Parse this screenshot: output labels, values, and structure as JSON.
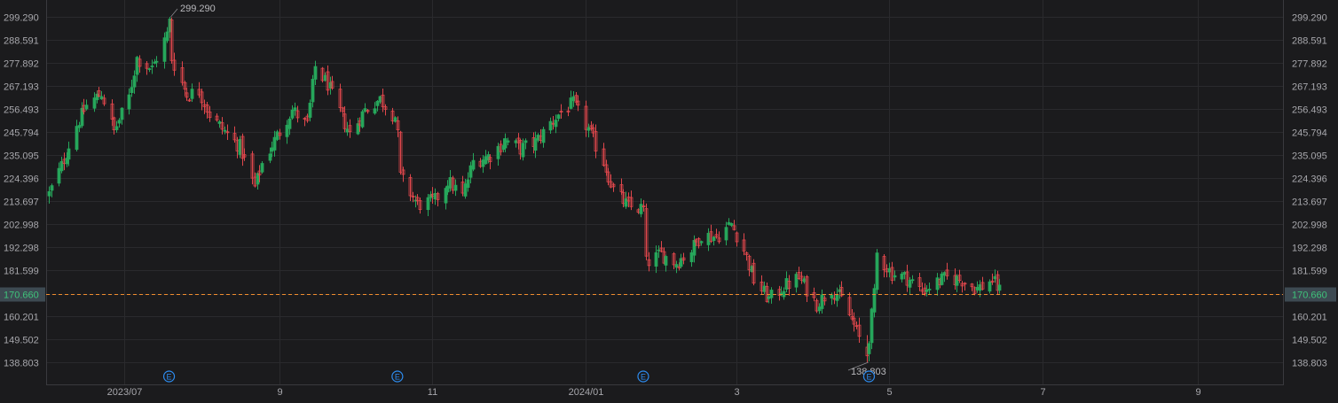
{
  "chart_data": {
    "type": "candlestick",
    "y_ticks": [
      299.29,
      288.591,
      277.892,
      267.193,
      256.493,
      245.794,
      235.095,
      224.396,
      213.697,
      202.998,
      192.298,
      181.599,
      170.66,
      160.201,
      149.502,
      138.803
    ],
    "y_tick_labels": [
      "299.290",
      "288.591",
      "277.892",
      "267.193",
      "256.493",
      "245.794",
      "235.095",
      "224.396",
      "213.697",
      "202.998",
      "192.298",
      "181.599",
      "170.660",
      "160.201",
      "149.502",
      "138.803"
    ],
    "ylim": [
      133.5,
      305.0
    ],
    "x_labels": [
      "2023/07",
      "9",
      "11",
      "2024/01",
      "3",
      "5",
      "7",
      "9"
    ],
    "x_label_dates": [
      "2023-07-01",
      "2023-09-01",
      "2023-11-01",
      "2024-01-01",
      "2024-03-01",
      "2024-05-01",
      "2024-07-01",
      "2024-09-01"
    ],
    "xlim": [
      "2023-05-31",
      "2024-10-05"
    ],
    "current_price": 170.66,
    "current_price_label": "170.660",
    "high_annotation": {
      "value": 299.29,
      "label": "299.290",
      "date": "2023-07-19"
    },
    "low_annotation": {
      "value": 138.803,
      "label": "138.803",
      "date": "2024-04-22"
    },
    "earnings_marker_label": "E",
    "earnings_dates": [
      "2023-07-19",
      "2023-10-18",
      "2024-01-24",
      "2024-04-23"
    ],
    "up_color": "#26a65b",
    "down_color": "#e0474c",
    "price_line_color": "#f08c2e",
    "earnings_color": "#2d8cf0",
    "close_path": [
      [
        "2023-06-01",
        217
      ],
      [
        "2023-06-06",
        230
      ],
      [
        "2023-06-12",
        249
      ],
      [
        "2023-06-16",
        258
      ],
      [
        "2023-06-22",
        264
      ],
      [
        "2023-06-27",
        246
      ],
      [
        "2023-07-03",
        262
      ],
      [
        "2023-07-06",
        280
      ],
      [
        "2023-07-12",
        275
      ],
      [
        "2023-07-18",
        291
      ],
      [
        "2023-07-19",
        298
      ],
      [
        "2023-07-20",
        280
      ],
      [
        "2023-07-26",
        263
      ],
      [
        "2023-07-31",
        265
      ],
      [
        "2023-08-04",
        254
      ],
      [
        "2023-08-10",
        246
      ],
      [
        "2023-08-16",
        239
      ],
      [
        "2023-08-22",
        220
      ],
      [
        "2023-08-25",
        231
      ],
      [
        "2023-08-31",
        244
      ],
      [
        "2023-09-06",
        256
      ],
      [
        "2023-09-12",
        249
      ],
      [
        "2023-09-15",
        276
      ],
      [
        "2023-09-20",
        268
      ],
      [
        "2023-09-25",
        255
      ],
      [
        "2023-09-29",
        245
      ],
      [
        "2023-10-05",
        256
      ],
      [
        "2023-10-11",
        261
      ],
      [
        "2023-10-17",
        253
      ],
      [
        "2023-10-18",
        244
      ],
      [
        "2023-10-19",
        225
      ],
      [
        "2023-10-26",
        212
      ],
      [
        "2023-11-02",
        214
      ],
      [
        "2023-11-07",
        223
      ],
      [
        "2023-11-13",
        216
      ],
      [
        "2023-11-17",
        232
      ],
      [
        "2023-11-24",
        235
      ],
      [
        "2023-11-30",
        242
      ],
      [
        "2023-12-06",
        238
      ],
      [
        "2023-12-12",
        241
      ],
      [
        "2023-12-18",
        250
      ],
      [
        "2023-12-22",
        255
      ],
      [
        "2023-12-27",
        259
      ],
      [
        "2024-01-02",
        247
      ],
      [
        "2024-01-08",
        232
      ],
      [
        "2024-01-12",
        219
      ],
      [
        "2024-01-18",
        211
      ],
      [
        "2024-01-24",
        210
      ],
      [
        "2024-01-25",
        185
      ],
      [
        "2024-01-31",
        189
      ],
      [
        "2024-02-06",
        185
      ],
      [
        "2024-02-12",
        191
      ],
      [
        "2024-02-16",
        198
      ],
      [
        "2024-02-22",
        197
      ],
      [
        "2024-02-28",
        203
      ],
      [
        "2024-03-04",
        191
      ],
      [
        "2024-03-08",
        177
      ],
      [
        "2024-03-14",
        168
      ],
      [
        "2024-03-20",
        174
      ],
      [
        "2024-03-26",
        178
      ],
      [
        "2024-04-02",
        166
      ],
      [
        "2024-04-08",
        173
      ],
      [
        "2024-04-12",
        168
      ],
      [
        "2024-04-17",
        156
      ],
      [
        "2024-04-22",
        141
      ],
      [
        "2024-04-25",
        170
      ],
      [
        "2024-04-26",
        189
      ],
      [
        "2024-05-02",
        180
      ],
      [
        "2024-05-08",
        178
      ],
      [
        "2024-05-14",
        172
      ],
      [
        "2024-05-20",
        176
      ],
      [
        "2024-05-24",
        178
      ],
      [
        "2024-05-30",
        177
      ],
      [
        "2024-06-05",
        173
      ],
      [
        "2024-06-11",
        177
      ],
      [
        "2024-06-14",
        172
      ]
    ]
  }
}
